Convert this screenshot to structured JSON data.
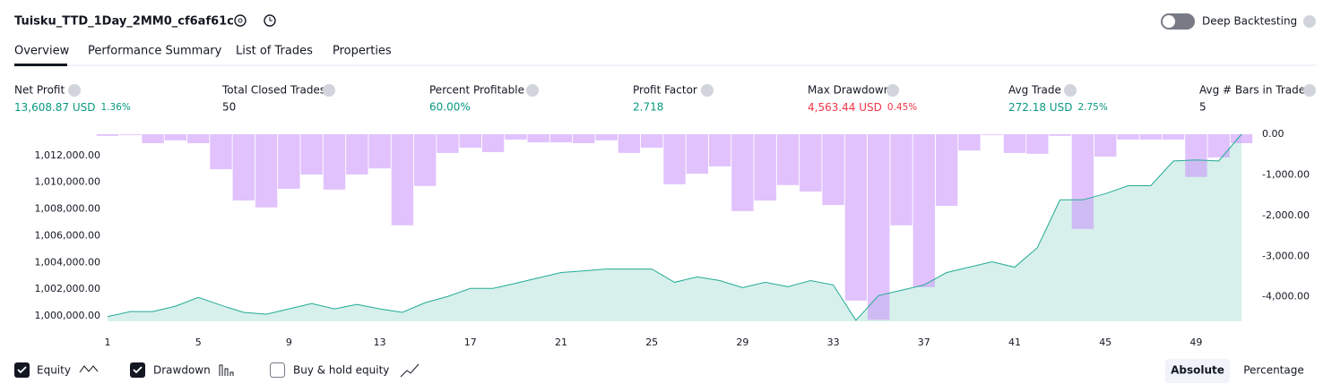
{
  "header": {
    "title": "Tuisku_TTD_1Day_2MM0_cf6af61c",
    "deep_backtesting": "Deep Backtesting"
  },
  "tabs": [
    "Overview",
    "Performance Summary",
    "List of Trades",
    "Properties"
  ],
  "stats": [
    {
      "label": "Net Profit",
      "value": "13,608.87 USD",
      "extra": "1.36%"
    },
    {
      "label": "Total Closed Trades",
      "value": "50"
    },
    {
      "label": "Percent Profitable",
      "value": "60.00%"
    },
    {
      "label": "Profit Factor",
      "value": "2.718"
    },
    {
      "label": "Max Drawdown",
      "value": "4,563.44 USD",
      "extra": "0.45%"
    },
    {
      "label": "Avg Trade",
      "value": "272.18 USD",
      "extra": "2.75%"
    },
    {
      "label": "Avg # Bars in Trades",
      "value": "5"
    }
  ],
  "chart_data": {
    "type": "combo",
    "categories": [
      1,
      null,
      null,
      null,
      5,
      null,
      null,
      null,
      9,
      null,
      null,
      null,
      13,
      null,
      null,
      null,
      17,
      null,
      null,
      null,
      21,
      null,
      null,
      null,
      25,
      null,
      null,
      null,
      29,
      null,
      null,
      null,
      33,
      null,
      null,
      null,
      37,
      null,
      null,
      null,
      41,
      null,
      null,
      null,
      45,
      null,
      null,
      null,
      49,
      null,
      null
    ],
    "series": [
      {
        "name": "Equity",
        "type": "area",
        "color": "#22ab94",
        "axis": "y",
        "values": [
          999950,
          1000330,
          1000330,
          1000730,
          1001390,
          1000800,
          1000270,
          1000130,
          1000530,
          1000930,
          1000530,
          1000860,
          1000530,
          1000270,
          1000990,
          1001460,
          1002060,
          1002060,
          1002450,
          1002850,
          1003250,
          1003380,
          1003510,
          1003510,
          1003510,
          1002520,
          1002920,
          1002650,
          1002120,
          1002520,
          1002190,
          1002650,
          1002320,
          999670,
          1001530,
          1001920,
          1002320,
          1003250,
          1003650,
          1004050,
          1003650,
          1005110,
          1008690,
          1008690,
          1009150,
          1009750,
          1009750,
          1011600,
          1011670,
          1011600,
          1013608.87
        ]
      },
      {
        "name": "Drawdown",
        "type": "bar",
        "color": "#c990fb",
        "axis": "y2",
        "values": [
          -40,
          -20,
          -220,
          -150,
          -220,
          -860,
          -1630,
          -1800,
          -1340,
          -990,
          -1360,
          -990,
          -840,
          -2240,
          -1270,
          -460,
          -330,
          -440,
          -130,
          -200,
          -200,
          -220,
          -150,
          -460,
          -330,
          -1230,
          -970,
          -790,
          -1890,
          -1630,
          -1250,
          -1410,
          -1740,
          -4090,
          -4563.44,
          -2240,
          -3760,
          -1760,
          -400,
          -20,
          -460,
          -480,
          -40,
          -2330,
          -550,
          -130,
          -130,
          -130,
          -1050,
          -570,
          -220
        ]
      }
    ],
    "ylim": [
      999600,
      1013600
    ],
    "yticks": [
      {
        "value": 1000000,
        "label": "1,000,000.00"
      },
      {
        "value": 1002000,
        "label": "1,002,000.00"
      },
      {
        "value": 1004000,
        "label": "1,004,000.00"
      },
      {
        "value": 1006000,
        "label": "1,006,000.00"
      },
      {
        "value": 1008000,
        "label": "1,008,000.00"
      },
      {
        "value": 1010000,
        "label": "1,010,000.00"
      },
      {
        "value": 1012000,
        "label": "1,012,000.00"
      }
    ],
    "y2lim": [
      0,
      -4600
    ],
    "y2ticks": [
      {
        "value": 0,
        "label": "0.00"
      },
      {
        "value": -1000,
        "label": "-1,000.00"
      },
      {
        "value": -2000,
        "label": "-2,000.00"
      },
      {
        "value": -3000,
        "label": "-3,000.00"
      },
      {
        "value": -4000,
        "label": "-4,000.00"
      }
    ]
  },
  "controls": {
    "buy_hold": "Buy & hold equity",
    "absolute": "Absolute",
    "percentage": "Percentage"
  }
}
